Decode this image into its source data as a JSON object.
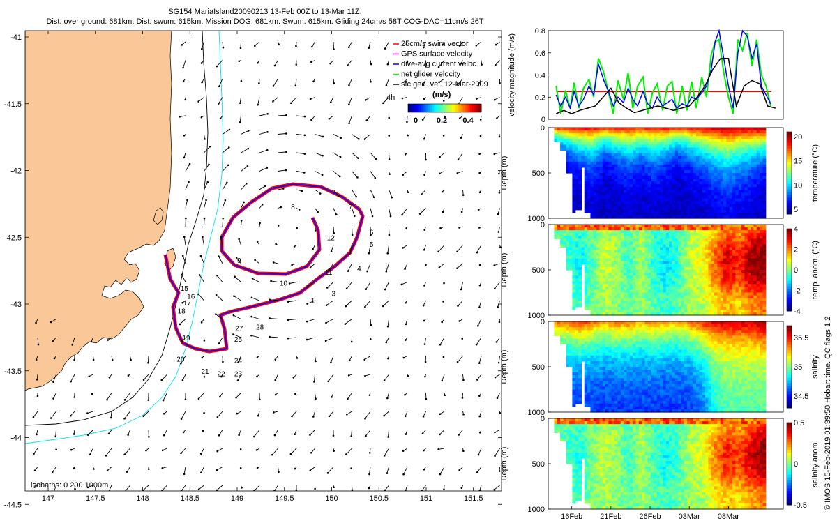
{
  "header": {
    "title_line1": "SG154 MariaIsland20090213 13-Feb 00Z to 13-Mar 11Z.",
    "title_line2": "Dist. over ground: 681km. Dist. swum: 615km. Mission DOG: 681km. Swum: 615km. Gliding 24cm/s 58T COG-DAC=11cm/s 26T"
  },
  "map": {
    "x_ticks": [
      "147",
      "147.5",
      "148",
      "148.5",
      "149",
      "149.5",
      "150",
      "150.5",
      "151",
      "151.5"
    ],
    "y_ticks": [
      "-41",
      "-41.5",
      "-42",
      "-42.5",
      "-43",
      "-43.5",
      "-44",
      "-44.5"
    ],
    "isobaths_label": "isobaths: 0   200  1000m",
    "legend": [
      {
        "label": "25cm/s swim vector",
        "color": "#ff0000"
      },
      {
        "label": "GPS surface velocity",
        "color": "#ff00ff"
      },
      {
        "label": "dive-avg current velbc.",
        "color": "#0000ff"
      },
      {
        "label": "net glider velocity",
        "color": "#00ff00"
      },
      {
        "label": "sfc geo. vel. 12-Mar-2009",
        "color": "#000000"
      }
    ],
    "arrow_scale_label": "4h",
    "colorbar_unit": "(m/s)",
    "colorbar_ticks": [
      "0",
      "0.2",
      "0.4"
    ],
    "colors": {
      "land": "#fac898",
      "track": "#ff0000",
      "track_core": "#0000ff",
      "isobath_200": "#000000",
      "isobath_1000": "#00e5ee"
    },
    "waypoints": [
      {
        "label": "1",
        "lon": 149.78,
        "lat": -42.97
      },
      {
        "label": "3",
        "lon": 150.0,
        "lat": -42.92
      },
      {
        "label": "4",
        "lon": 150.27,
        "lat": -42.73
      },
      {
        "label": "5",
        "lon": 150.4,
        "lat": -42.55
      },
      {
        "label": "6",
        "lon": 150.4,
        "lat": -42.46
      },
      {
        "label": "7",
        "lon": 150.18,
        "lat": -42.27
      },
      {
        "label": "8",
        "lon": 149.57,
        "lat": -42.27
      },
      {
        "label": "9",
        "lon": 149.0,
        "lat": -42.67
      },
      {
        "label": "10",
        "lon": 149.45,
        "lat": -42.84
      },
      {
        "label": "11",
        "lon": 149.93,
        "lat": -42.76
      },
      {
        "label": "12",
        "lon": 149.95,
        "lat": -42.5
      },
      {
        "label": "15",
        "lon": 148.4,
        "lat": -42.88
      },
      {
        "label": "16",
        "lon": 148.47,
        "lat": -42.94
      },
      {
        "label": "17",
        "lon": 148.43,
        "lat": -42.99
      },
      {
        "label": "18",
        "lon": 148.37,
        "lat": -43.05
      },
      {
        "label": "19",
        "lon": 148.42,
        "lat": -43.25
      },
      {
        "label": "20",
        "lon": 148.36,
        "lat": -43.41
      },
      {
        "label": "21",
        "lon": 148.62,
        "lat": -43.5
      },
      {
        "label": "22",
        "lon": 148.79,
        "lat": -43.52
      },
      {
        "label": "23",
        "lon": 148.97,
        "lat": -43.52
      },
      {
        "label": "24",
        "lon": 148.97,
        "lat": -43.42
      },
      {
        "label": "25",
        "lon": 148.97,
        "lat": -43.26
      },
      {
        "label": "27",
        "lon": 148.98,
        "lat": -43.18
      },
      {
        "label": "28",
        "lon": 149.2,
        "lat": -43.17
      }
    ]
  },
  "chart_data": [
    {
      "type": "line",
      "title": "",
      "xlabel": "",
      "ylabel": "velocity magnitude (m/s)",
      "ylim": [
        0,
        0.8
      ],
      "yticks": [
        "0",
        "0.2",
        "0.4",
        "0.6",
        "0.8"
      ],
      "x_unit": "days since 13-Feb",
      "xlim": [
        0,
        30
      ],
      "series": [
        {
          "name": "swim speed 25cm/s",
          "color": "#ff0000",
          "x": [
            1,
            28.5
          ],
          "values": [
            0.25,
            0.25
          ]
        },
        {
          "name": "dive-avg current",
          "color": "#0000ff",
          "x": [
            1,
            1.6,
            2.2,
            2.8,
            3.3,
            3.9,
            4.5,
            5.2,
            5.8,
            6.4,
            7.1,
            7.7,
            8.3,
            8.9,
            9.6,
            10.2,
            10.8,
            11.4,
            12.1,
            12.7,
            13.3,
            13.9,
            14.6,
            15.2,
            15.8,
            16.4,
            17.1,
            17.7,
            18.3,
            18.9,
            19.6,
            20.2,
            20.8,
            21.3,
            21.8,
            22.4,
            23.0,
            23.6,
            24.2,
            24.8,
            25.4,
            26.0,
            26.6,
            27.2,
            27.8,
            28.4
          ],
          "values": [
            0.22,
            0.12,
            0.2,
            0.1,
            0.25,
            0.12,
            0.18,
            0.3,
            0.22,
            0.5,
            0.35,
            0.25,
            0.12,
            0.2,
            0.15,
            0.28,
            0.18,
            0.12,
            0.25,
            0.14,
            0.1,
            0.2,
            0.12,
            0.15,
            0.18,
            0.1,
            0.14,
            0.12,
            0.2,
            0.18,
            0.24,
            0.3,
            0.45,
            0.7,
            0.8,
            0.55,
            0.3,
            0.1,
            0.6,
            0.8,
            0.75,
            0.55,
            0.68,
            0.3,
            0.22,
            0.14
          ]
        },
        {
          "name": "net glider velocity",
          "color": "#00ee00",
          "x": [
            1,
            1.6,
            2.2,
            2.8,
            3.3,
            3.9,
            4.5,
            5.2,
            5.8,
            6.4,
            7.1,
            7.7,
            8.3,
            8.9,
            9.6,
            10.2,
            10.8,
            11.4,
            12.1,
            12.7,
            13.3,
            13.9,
            14.6,
            15.2,
            15.8,
            16.4,
            17.1,
            17.7,
            18.3,
            18.9,
            19.6,
            20.2,
            20.8,
            21.3,
            21.8,
            22.4,
            23.0,
            23.6,
            24.2,
            24.8,
            25.4,
            26.0,
            26.6,
            27.2,
            27.8,
            28.4
          ],
          "values": [
            0.3,
            0.05,
            0.26,
            0.1,
            0.33,
            0.1,
            0.28,
            0.36,
            0.2,
            0.55,
            0.42,
            0.24,
            0.05,
            0.35,
            0.18,
            0.42,
            0.1,
            0.3,
            0.38,
            0.05,
            0.24,
            0.32,
            0.08,
            0.3,
            0.34,
            0.05,
            0.3,
            0.08,
            0.34,
            0.1,
            0.38,
            0.2,
            0.58,
            0.7,
            0.72,
            0.42,
            0.2,
            0.05,
            0.72,
            0.62,
            0.78,
            0.48,
            0.72,
            0.4,
            0.3,
            0.12
          ]
        },
        {
          "name": "sfc geo. vel.",
          "color": "#000000",
          "x": [
            1,
            2,
            3,
            4,
            5,
            6,
            7,
            8,
            9,
            10,
            11,
            12,
            13,
            14,
            15,
            16,
            17,
            18,
            19,
            20,
            21,
            22,
            23,
            24,
            25,
            26,
            27,
            28,
            29
          ],
          "values": [
            0.05,
            0.08,
            0.05,
            0.08,
            0.1,
            0.12,
            0.2,
            0.28,
            0.15,
            0.1,
            0.06,
            0.08,
            0.1,
            0.12,
            0.1,
            0.08,
            0.1,
            0.12,
            0.2,
            0.3,
            0.45,
            0.55,
            0.55,
            0.12,
            0.3,
            0.35,
            0.32,
            0.12,
            0.1
          ]
        }
      ]
    },
    {
      "type": "heatmap",
      "variable": "temperature",
      "ylabel": "Depth (m)",
      "ylim": [
        1000,
        0
      ],
      "yticks": [
        "0",
        "500",
        "1000"
      ],
      "colorbar_label": "temperature (°C)",
      "clim": [
        4,
        21
      ],
      "colorbar_ticks": [
        "5",
        "10",
        "15",
        "20"
      ],
      "surface_value": [
        19,
        19,
        19.5,
        19,
        18.5,
        19,
        19,
        18.5,
        19,
        19,
        18.5,
        19,
        19.5,
        20,
        20.5,
        20,
        20.5,
        21
      ],
      "deep_value": [
        5,
        5,
        5,
        5,
        5,
        5,
        5,
        5,
        5,
        5,
        5,
        5,
        5,
        5,
        5,
        5,
        5,
        5
      ],
      "thermocline_depth": [
        150,
        200,
        250,
        300,
        200,
        250,
        300,
        250,
        300,
        250,
        200,
        250,
        300,
        350,
        400,
        350,
        300,
        250
      ]
    },
    {
      "type": "heatmap",
      "variable": "temp. anomaly",
      "ylabel": "Depth (m)",
      "ylim": [
        1000,
        0
      ],
      "yticks": [
        "0",
        "500",
        "1000"
      ],
      "colorbar_label": "temp. anom. (°C)",
      "clim": [
        -4,
        4
      ],
      "colorbar_ticks": [
        "4",
        "2",
        "0",
        "-2",
        "-4"
      ],
      "column_anomaly": [
        0,
        -0.5,
        -0.8,
        -0.3,
        0.5,
        0.2,
        -0.5,
        0.3,
        -0.6,
        -1.0,
        -0.5,
        0.4,
        0.8,
        1.8,
        2.8,
        2.2,
        3.2,
        3.4
      ]
    },
    {
      "type": "heatmap",
      "variable": "salinity",
      "ylabel": "Depth (m)",
      "ylim": [
        1000,
        0
      ],
      "yticks": [
        "0",
        "500",
        "1000"
      ],
      "colorbar_label": "salinity",
      "clim": [
        34.3,
        35.7
      ],
      "colorbar_ticks": [
        "35.5",
        "35",
        "34.5"
      ],
      "surface_value": [
        35.4,
        35.4,
        35.5,
        35.4,
        35.3,
        35.4,
        35.4,
        35.3,
        35.4,
        35.3,
        35.3,
        35.4,
        35.5,
        35.6,
        35.6,
        35.6,
        35.6,
        35.7
      ],
      "deep_value": [
        34.5,
        34.5,
        34.5,
        34.5,
        34.5,
        34.5,
        34.5,
        34.5,
        34.5,
        34.5,
        34.5,
        34.5,
        34.6,
        34.8,
        34.9,
        34.9,
        34.9,
        34.9
      ]
    },
    {
      "type": "heatmap",
      "variable": "salinity anomaly",
      "ylabel": "Depth (m)",
      "ylim": [
        1000,
        0
      ],
      "yticks": [
        "0",
        "500",
        "1000"
      ],
      "colorbar_label": "salinity anom.",
      "clim": [
        -0.5,
        0.5
      ],
      "colorbar_ticks": [
        "0.5",
        "0",
        "-0.5"
      ],
      "column_anomaly": [
        0,
        -0.05,
        -0.08,
        0,
        0.05,
        0.02,
        -0.06,
        0.04,
        -0.05,
        -0.1,
        -0.05,
        0.04,
        0.08,
        0.2,
        0.3,
        0.25,
        0.35,
        0.42
      ],
      "xticks": [
        "16Feb",
        "21Feb",
        "26Feb",
        "03Mar",
        "08Mar"
      ],
      "xtick_days": [
        3,
        8,
        13,
        18,
        23
      ]
    }
  ],
  "footer": {
    "credit": "© IMOS 15-Feb-2019 01:39:50 Hobart time. QC flags 1  2"
  }
}
